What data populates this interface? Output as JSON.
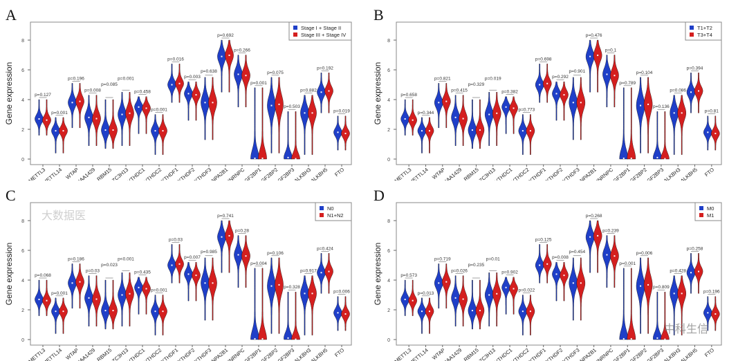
{
  "chart_data": {
    "type": "violin",
    "ylabel": "Gene expression",
    "ylim": [
      0,
      9
    ],
    "yticks": [
      0,
      2,
      4,
      6,
      8
    ],
    "grid": false,
    "legend_placement": "top-right",
    "colors": {
      "group1": "#1f3fc8",
      "group2": "#d41f1f"
    },
    "genes": [
      "METTL3",
      "METTL14",
      "WTAP",
      "KIAA1429",
      "RBM15",
      "ZC3H13",
      "YTHDC1",
      "YTHDC2",
      "YTHDF1",
      "YTHDF2",
      "YTHDF3",
      "HNRNPA2B1",
      "HNRNPC",
      "IGF2BP1",
      "IGF2BP2",
      "IGF2BP3",
      "ALKBH3",
      "ALKBH5",
      "FTO"
    ],
    "approx_median": [
      2.7,
      1.9,
      3.8,
      2.8,
      1.95,
      3.0,
      3.5,
      1.9,
      5.0,
      4.4,
      3.8,
      6.9,
      5.7,
      0.05,
      3.6,
      0.1,
      3.1,
      4.5,
      1.8
    ],
    "approx_min": [
      1.6,
      0.4,
      2.1,
      0.9,
      0.7,
      0.9,
      1.7,
      0.3,
      3.8,
      2.6,
      1.3,
      4.5,
      3.5,
      0,
      0.4,
      0,
      0.3,
      3.1,
      0.6
    ],
    "approx_max": [
      4.0,
      2.8,
      5.1,
      4.3,
      4.0,
      4.5,
      4.2,
      3.0,
      6.4,
      5.2,
      5.5,
      8.0,
      7.0,
      4.8,
      5.5,
      3.2,
      4.3,
      5.8,
      2.9
    ],
    "panels": [
      {
        "label": "A",
        "groups": [
          "Stage I + Stage II",
          "Stage III + Stage IV"
        ],
        "pvalues": [
          "p=0.127",
          "p=0.001",
          "p=0.196",
          "p=0.008",
          "p=0.085",
          "p=0.001",
          "p=0.458",
          "p=0.001",
          "p=0.016",
          "p=0.003",
          "p=0.638",
          "p=0.692",
          "p=0.266",
          "p=0.001",
          "p=0.075",
          "p=0.503",
          "p=0.882",
          "p=0.192",
          "p=0.019"
        ]
      },
      {
        "label": "B",
        "groups": [
          "T1+T2",
          "T3+T4"
        ],
        "pvalues": [
          "p=0.658",
          "p=0.344",
          "p=0.821",
          "p=0.415",
          "p=0.329",
          "p=0.019",
          "p=0.382",
          "p=0.773",
          "p=0.698",
          "p=0.292",
          "p=0.901",
          "p=0.476",
          "p=0.1",
          "p=0.789",
          "p=0.104",
          "p=0.136",
          "p=0.086",
          "p=0.394",
          "p=0.81"
        ]
      },
      {
        "label": "C",
        "groups": [
          "N0",
          "N1+N2"
        ],
        "pvalues": [
          "p=0.068",
          "p=0.001",
          "p=0.186",
          "p=0.03",
          "p=0.023",
          "p<0.001",
          "p=0.435",
          "p=0.001",
          "p=0.03",
          "p=0.007",
          "p=0.985",
          "p=0.741",
          "p=0.28",
          "p=0.004",
          "p=0.106",
          "p=0.328",
          "p=0.917",
          "p=0.424",
          "p=0.006"
        ]
      },
      {
        "label": "D",
        "groups": [
          "M0",
          "M1"
        ],
        "pvalues": [
          "p=0.573",
          "p=0.013",
          "p=0.719",
          "p=0.026",
          "p=0.235",
          "p=0.01",
          "p=0.902",
          "p=0.022",
          "p=0.125",
          "p=0.008",
          "p=0.454",
          "p=0.268",
          "p=0.239",
          "p=0.001",
          "p=0.006",
          "p=0.809",
          "p=0.428",
          "p=0.258",
          "p=0.196"
        ]
      }
    ]
  },
  "watermarks": [
    "大数据医",
    "中科生信"
  ]
}
